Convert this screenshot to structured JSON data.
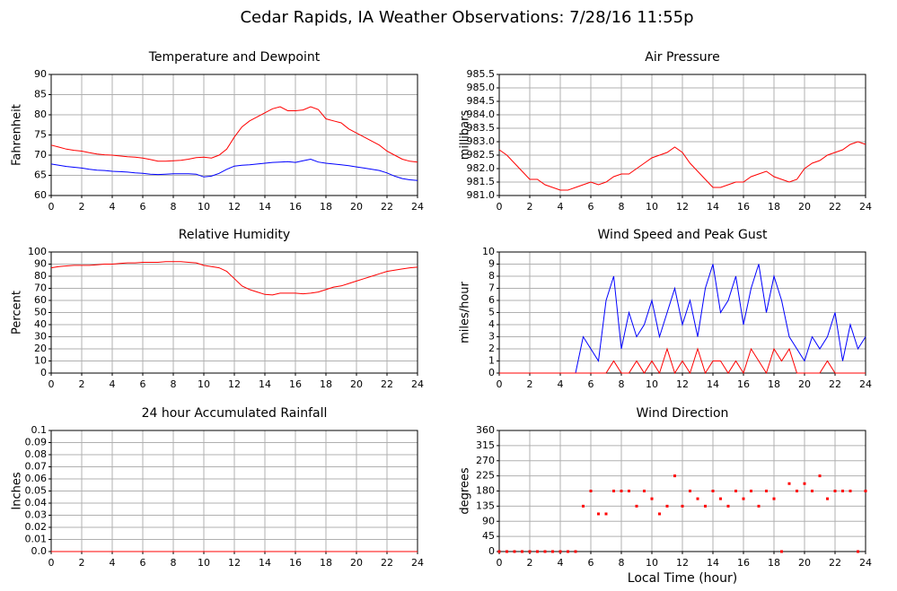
{
  "title": "Cedar Rapids, IA Weather Observations: 7/28/16 11:55p",
  "chart_data": [
    {
      "type": "line",
      "title": "Temperature and Dewpoint",
      "y_label": "Fahrenheit",
      "xlim": [
        0,
        24
      ],
      "xticks": [
        0,
        2,
        4,
        6,
        8,
        10,
        12,
        14,
        16,
        18,
        20,
        22,
        24
      ],
      "ylim": [
        60,
        90
      ],
      "yticks": [
        60,
        65,
        70,
        75,
        80,
        85,
        90
      ],
      "grid": true,
      "x": [
        0,
        0.5,
        1,
        1.5,
        2,
        2.5,
        3,
        3.5,
        4,
        4.5,
        5,
        5.5,
        6,
        6.5,
        7,
        7.5,
        8,
        8.5,
        9,
        9.5,
        10,
        10.5,
        11,
        11.5,
        12,
        12.5,
        13,
        13.5,
        14,
        14.5,
        15,
        15.5,
        16,
        16.5,
        17,
        17.5,
        18,
        18.5,
        19,
        19.5,
        20,
        20.5,
        21,
        21.5,
        22,
        22.5,
        23,
        23.5,
        24
      ],
      "series": [
        {
          "color": "#ff0000",
          "values": [
            72.5,
            72,
            71.5,
            71.2,
            71,
            70.6,
            70.3,
            70.1,
            70,
            69.8,
            69.6,
            69.5,
            69.3,
            68.9,
            68.5,
            68.5,
            68.6,
            68.7,
            69,
            69.4,
            69.5,
            69.3,
            70,
            71.5,
            74.5,
            77,
            78.5,
            79.5,
            80.5,
            81.5,
            82,
            81,
            81,
            81.2,
            82,
            81.3,
            79,
            78.5,
            78,
            76.5,
            75.5,
            74.5,
            73.5,
            72.5,
            71,
            70,
            69,
            68.5,
            68.3
          ]
        },
        {
          "color": "#0000ff",
          "values": [
            67.8,
            67.5,
            67.2,
            67,
            66.8,
            66.5,
            66.3,
            66.2,
            66,
            65.9,
            65.8,
            65.6,
            65.5,
            65.3,
            65.2,
            65.3,
            65.4,
            65.4,
            65.4,
            65.3,
            64.6,
            64.8,
            65.5,
            66.5,
            67.3,
            67.5,
            67.6,
            67.8,
            68,
            68.2,
            68.3,
            68.4,
            68.2,
            68.6,
            69,
            68.3,
            68,
            67.8,
            67.6,
            67.4,
            67.1,
            66.8,
            66.5,
            66.2,
            65.6,
            64.8,
            64.2,
            63.9,
            63.7
          ]
        }
      ]
    },
    {
      "type": "line",
      "title": "Air Pressure",
      "y_label": "millibars",
      "xlim": [
        0,
        24
      ],
      "xticks": [
        0,
        2,
        4,
        6,
        8,
        10,
        12,
        14,
        16,
        18,
        20,
        22,
        24
      ],
      "ylim": [
        981,
        985.5
      ],
      "yticks": [
        {
          "value": 981,
          "label": "981.0"
        },
        981.5,
        {
          "value": 982,
          "label": "982.0"
        },
        982.5,
        {
          "value": 983,
          "label": "983.0"
        },
        983.5,
        {
          "value": 984,
          "label": "984.0"
        },
        984.5,
        {
          "value": 985,
          "label": "985.0"
        },
        985.5
      ],
      "grid": true,
      "x": [
        0,
        0.5,
        1,
        1.5,
        2,
        2.5,
        3,
        3.5,
        4,
        4.5,
        5,
        5.5,
        6,
        6.5,
        7,
        7.5,
        8,
        8.5,
        9,
        9.5,
        10,
        10.5,
        11,
        11.5,
        12,
        12.5,
        13,
        13.5,
        14,
        14.5,
        15,
        15.5,
        16,
        16.5,
        17,
        17.5,
        18,
        18.5,
        19,
        19.5,
        20,
        20.5,
        21,
        21.5,
        22,
        22.5,
        23,
        23.5,
        24
      ],
      "series": [
        {
          "color": "#ff0000",
          "values": [
            982.7,
            982.5,
            982.2,
            981.9,
            981.6,
            981.6,
            981.4,
            981.3,
            981.2,
            981.2,
            981.3,
            981.4,
            981.5,
            981.4,
            981.5,
            981.7,
            981.8,
            981.8,
            982.0,
            982.2,
            982.4,
            982.5,
            982.6,
            982.8,
            982.6,
            982.2,
            981.9,
            981.6,
            981.3,
            981.3,
            981.4,
            981.5,
            981.5,
            981.7,
            981.8,
            981.9,
            981.7,
            981.6,
            981.5,
            981.6,
            982.0,
            982.2,
            982.3,
            982.5,
            982.6,
            982.7,
            982.9,
            983.0,
            982.9
          ]
        }
      ]
    },
    {
      "type": "line",
      "title": "Relative Humidity",
      "y_label": "Percent",
      "xlim": [
        0,
        24
      ],
      "xticks": [
        0,
        2,
        4,
        6,
        8,
        10,
        12,
        14,
        16,
        18,
        20,
        22,
        24
      ],
      "ylim": [
        0,
        100
      ],
      "yticks": [
        0,
        10,
        20,
        30,
        40,
        50,
        60,
        70,
        80,
        90,
        100
      ],
      "grid": true,
      "x": [
        0,
        0.5,
        1,
        1.5,
        2,
        2.5,
        3,
        3.5,
        4,
        4.5,
        5,
        5.5,
        6,
        6.5,
        7,
        7.5,
        8,
        8.5,
        9,
        9.5,
        10,
        10.5,
        11,
        11.5,
        12,
        12.5,
        13,
        13.5,
        14,
        14.5,
        15,
        15.5,
        16,
        16.5,
        17,
        17.5,
        18,
        18.5,
        19,
        19.5,
        20,
        20.5,
        21,
        21.5,
        22,
        22.5,
        23,
        23.5,
        24
      ],
      "series": [
        {
          "color": "#ff0000",
          "values": [
            87,
            88,
            88.5,
            89,
            89,
            89,
            89.5,
            90,
            90,
            90.5,
            91,
            91,
            91.5,
            91.5,
            91.5,
            92,
            92,
            92,
            91.5,
            91,
            89,
            88,
            87,
            84,
            78,
            72,
            69,
            67,
            65,
            64.5,
            66,
            66,
            66,
            65.5,
            66,
            67,
            69,
            71,
            72,
            74,
            76,
            78,
            80,
            82,
            84,
            85,
            86,
            87,
            87.5
          ]
        }
      ]
    },
    {
      "type": "line",
      "title": "Wind Speed and Peak Gust",
      "y_label": "miles/hour",
      "xlim": [
        0,
        24
      ],
      "xticks": [
        0,
        2,
        4,
        6,
        8,
        10,
        12,
        14,
        16,
        18,
        20,
        22,
        24
      ],
      "ylim": [
        0,
        10
      ],
      "yticks": [
        0,
        1,
        2,
        3,
        4,
        5,
        6,
        7,
        8,
        9,
        10
      ],
      "grid": true,
      "x": [
        0,
        0.5,
        1,
        1.5,
        2,
        2.5,
        3,
        3.5,
        4,
        4.5,
        5,
        5.5,
        6,
        6.5,
        7,
        7.5,
        8,
        8.5,
        9,
        9.5,
        10,
        10.5,
        11,
        11.5,
        12,
        12.5,
        13,
        13.5,
        14,
        14.5,
        15,
        15.5,
        16,
        16.5,
        17,
        17.5,
        18,
        18.5,
        19,
        19.5,
        20,
        20.5,
        21,
        21.5,
        22,
        22.5,
        23,
        23.5,
        24
      ],
      "series": [
        {
          "color": "#0000ff",
          "values": [
            0,
            0,
            0,
            0,
            0,
            0,
            0,
            0,
            0,
            0,
            0,
            3,
            2,
            1,
            6,
            8,
            2,
            5,
            3,
            4,
            6,
            3,
            5,
            7,
            4,
            6,
            3,
            7,
            9,
            5,
            6,
            8,
            4,
            7,
            9,
            5,
            8,
            6,
            3,
            2,
            1,
            3,
            2,
            3,
            5,
            1,
            4,
            2,
            3
          ]
        },
        {
          "color": "#ff0000",
          "values": [
            0,
            0,
            0,
            0,
            0,
            0,
            0,
            0,
            0,
            0,
            0,
            0,
            0,
            0,
            0,
            1,
            0,
            0,
            1,
            0,
            1,
            0,
            2,
            0,
            1,
            0,
            2,
            0,
            1,
            1,
            0,
            1,
            0,
            2,
            1,
            0,
            2,
            1,
            2,
            0,
            0,
            0,
            0,
            1,
            0,
            0,
            0,
            0,
            0
          ]
        }
      ]
    },
    {
      "type": "line",
      "title": "24 hour Accumulated Rainfall",
      "y_label": "Inches",
      "xlim": [
        0,
        24
      ],
      "xticks": [
        0,
        2,
        4,
        6,
        8,
        10,
        12,
        14,
        16,
        18,
        20,
        22,
        24
      ],
      "ylim": [
        0,
        0.1
      ],
      "yticks": [
        {
          "value": 0,
          "label": "0.0"
        },
        0.01,
        0.02,
        0.03,
        0.04,
        0.05,
        0.06,
        0.07,
        0.08,
        0.09,
        0.1
      ],
      "grid": true,
      "x": [
        0,
        24
      ],
      "series": [
        {
          "color": "#ff0000",
          "values": [
            0,
            0
          ]
        }
      ]
    },
    {
      "type": "scatter",
      "title": "Wind Direction",
      "y_label": "degrees",
      "x_label": "Local Time (hour)",
      "xlim": [
        0,
        24
      ],
      "xticks": [
        0,
        2,
        4,
        6,
        8,
        10,
        12,
        14,
        16,
        18,
        20,
        22,
        24
      ],
      "ylim": [
        0,
        360
      ],
      "yticks": [
        0,
        45,
        90,
        135,
        180,
        225,
        270,
        315,
        360
      ],
      "grid": true,
      "x": [
        0,
        0.5,
        1,
        1.5,
        2,
        2.5,
        3,
        3.5,
        4,
        4.5,
        5,
        5.5,
        6,
        6.5,
        7,
        7.5,
        8,
        8.5,
        9,
        9.5,
        10,
        10.5,
        11,
        11.5,
        12,
        12.5,
        13,
        13.5,
        14,
        14.5,
        15,
        15.5,
        16,
        16.5,
        17,
        17.5,
        18,
        18.5,
        19,
        19.5,
        20,
        20.5,
        21,
        21.5,
        22,
        22.5,
        23,
        23.5,
        24
      ],
      "series": [
        {
          "color": "#ff0000",
          "values": [
            0,
            0,
            0,
            0,
            0,
            0,
            0,
            0,
            0,
            0,
            0,
            135,
            180,
            112,
            112,
            180,
            180,
            180,
            135,
            180,
            157,
            112,
            135,
            225,
            135,
            180,
            157,
            135,
            180,
            157,
            135,
            180,
            157,
            180,
            135,
            180,
            157,
            0,
            202,
            180,
            202,
            180,
            225,
            157,
            180,
            180,
            180,
            0,
            180
          ]
        }
      ]
    }
  ]
}
